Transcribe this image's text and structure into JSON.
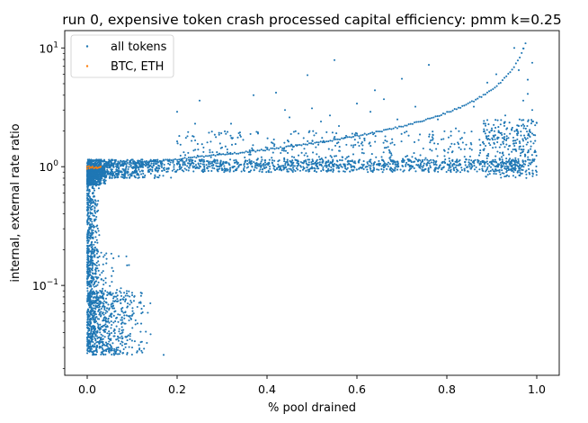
{
  "chart_data": {
    "type": "scatter",
    "title": "run 0, expensive token crash processed capital efficiency: pmm k=0.25",
    "xlabel": "% pool drained",
    "ylabel": "internal, external rate ratio",
    "xlim": [
      -0.05,
      1.05
    ],
    "ylim": [
      0.0175,
      14.0
    ],
    "yscale": "log",
    "grid": false,
    "legend_position": "top-left",
    "x_ticks": [
      {
        "value": 0.0,
        "label": "0.0"
      },
      {
        "value": 0.2,
        "label": "0.2"
      },
      {
        "value": 0.4,
        "label": "0.4"
      },
      {
        "value": 0.6,
        "label": "0.6"
      },
      {
        "value": 0.8,
        "label": "0.8"
      },
      {
        "value": 1.0,
        "label": "1.0"
      }
    ],
    "y_ticks": [
      {
        "value": 0.1,
        "base": "10",
        "exp": "−1"
      },
      {
        "value": 1,
        "base": "10",
        "exp": "0"
      },
      {
        "value": 10,
        "base": "10",
        "exp": "1"
      }
    ],
    "series": [
      {
        "name": "all tokens",
        "color": "#1f77b4",
        "points": [
          [
            0.55,
            7.9
          ],
          [
            0.49,
            5.9
          ],
          [
            0.95,
            10.0
          ],
          [
            0.97,
            9.9
          ],
          [
            0.76,
            7.2
          ],
          [
            0.7,
            5.5
          ],
          [
            0.91,
            6.0
          ],
          [
            0.89,
            5.1
          ],
          [
            0.42,
            4.2
          ],
          [
            0.37,
            4.0
          ],
          [
            0.25,
            3.6
          ],
          [
            0.2,
            2.9
          ],
          [
            0.24,
            2.3
          ],
          [
            0.5,
            3.1
          ],
          [
            0.54,
            2.7
          ],
          [
            0.64,
            4.4
          ],
          [
            0.66,
            3.7
          ],
          [
            0.73,
            3.2
          ],
          [
            0.56,
            2.2
          ],
          [
            0.6,
            1.9
          ],
          [
            0.47,
            1.9
          ],
          [
            0.41,
            1.6
          ],
          [
            0.33,
            1.55
          ],
          [
            0.3,
            1.45
          ],
          [
            0.45,
            2.6
          ],
          [
            0.86,
            3.2
          ],
          [
            0.99,
            2.4
          ],
          [
            0.98,
            4.1
          ],
          [
            0.99,
            3.0
          ],
          [
            0.6,
            3.4
          ],
          [
            0.44,
            3.0
          ],
          [
            0.32,
            2.3
          ],
          [
            0.78,
            2.5
          ],
          [
            0.82,
            2.1
          ],
          [
            0.63,
            2.9
          ],
          [
            0.52,
            2.4
          ],
          [
            0.69,
            2.5
          ],
          [
            0.38,
            1.9
          ],
          [
            0.93,
            2.7
          ],
          [
            0.96,
            6.5
          ],
          [
            0.98,
            5.4
          ],
          [
            0.97,
            3.6
          ],
          [
            0.99,
            1.9
          ],
          [
            0.99,
            7.5
          ],
          [
            0.98,
            1.6
          ],
          [
            0.96,
            2.2
          ],
          [
            0.94,
            1.5
          ],
          [
            0.9,
            2.1
          ],
          [
            0.17,
            0.026
          ],
          [
            0.1,
            0.03
          ],
          [
            0.08,
            0.027
          ],
          [
            0.06,
            0.026
          ]
        ],
        "clusters": [
          {
            "x_range": [
              0.0,
              0.05
            ],
            "y_range": [
              0.7,
              1.0
            ],
            "n": 450
          },
          {
            "x_range": [
              0.0,
              0.03
            ],
            "y_range": [
              0.1,
              0.75
            ],
            "n": 380
          },
          {
            "x_range": [
              0.0,
              0.15
            ],
            "y_range": [
              0.026,
              0.09
            ],
            "n": 750
          },
          {
            "x_range": [
              0.0,
              0.1
            ],
            "y_range": [
              0.07,
              0.2
            ],
            "n": 120
          },
          {
            "x_range": [
              0.0,
              0.2
            ],
            "y_range": [
              0.8,
              1.15
            ],
            "n": 700
          },
          {
            "x_range": [
              0.1,
              0.97
            ],
            "y_range": [
              0.9,
              1.15
            ],
            "n": 1000
          },
          {
            "x_range": [
              0.2,
              0.99
            ],
            "y_range": [
              1.0,
              2.0
            ],
            "n": 420
          },
          {
            "x_range": [
              0.88,
              1.0
            ],
            "y_range": [
              0.8,
              2.5
            ],
            "n": 250
          }
        ],
        "curve": {
          "x_range": [
            0.0,
            0.975
          ],
          "y_formula": "1/(1-x)^0.65 rising from 1.0 to about 10",
          "n": 230
        }
      },
      {
        "name": "BTC, ETH",
        "color": "#ff7f0e",
        "points": [
          [
            0.0,
            0.96
          ],
          [
            0.005,
            0.97
          ],
          [
            0.01,
            0.98
          ],
          [
            0.015,
            0.97
          ],
          [
            0.02,
            0.99
          ],
          [
            0.025,
            0.98
          ],
          [
            0.03,
            1.0
          ],
          [
            0.0,
            1.0
          ],
          [
            0.004,
            1.01
          ],
          [
            0.008,
            0.99
          ],
          [
            0.012,
            1.0
          ],
          [
            0.018,
            0.98
          ],
          [
            0.022,
            0.97
          ],
          [
            0.028,
            0.99
          ]
        ]
      }
    ]
  }
}
